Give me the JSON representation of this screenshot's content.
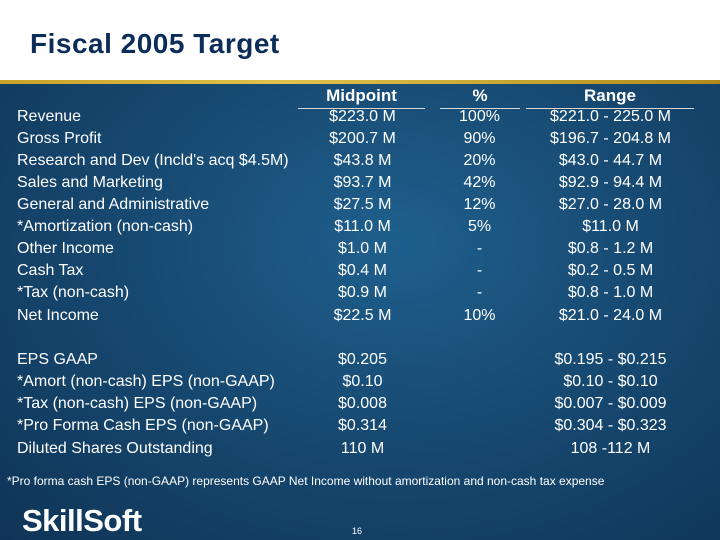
{
  "title": "Fiscal 2005 Target",
  "columns": {
    "midpoint": "Midpoint",
    "percent": "%",
    "range": "Range"
  },
  "rows": [
    {
      "label": "Revenue",
      "midpoint": "$223.0 M",
      "percent": "100%",
      "range": "$221.0 - 225.0 M"
    },
    {
      "label": "Gross Profit",
      "midpoint": "$200.7 M",
      "percent": "90%",
      "range": "$196.7 - 204.8 M"
    },
    {
      "label": "Research and Dev (Incld's acq $4.5M)",
      "midpoint": "$43.8 M",
      "percent": "20%",
      "range": "$43.0 - 44.7 M"
    },
    {
      "label": "Sales and Marketing",
      "midpoint": "$93.7 M",
      "percent": "42%",
      "range": "$92.9 - 94.4 M"
    },
    {
      "label": "General and Administrative",
      "midpoint": "$27.5 M",
      "percent": "12%",
      "range": "$27.0 - 28.0 M"
    },
    {
      "label": "*Amortization (non-cash)",
      "midpoint": "$11.0 M",
      "percent": "5%",
      "range": "$11.0 M"
    },
    {
      "label": "Other Income",
      "midpoint": "$1.0 M",
      "percent": "-",
      "range": "$0.8 - 1.2 M"
    },
    {
      "label": "Cash Tax",
      "midpoint": "$0.4 M",
      "percent": "-",
      "range": "$0.2 - 0.5 M"
    },
    {
      "label": "*Tax (non-cash)",
      "midpoint": "$0.9 M",
      "percent": "-",
      "range": "$0.8 - 1.0 M"
    },
    {
      "label": "Net Income",
      "midpoint": "$22.5 M",
      "percent": "10%",
      "range": "$21.0 - 24.0 M"
    },
    {
      "label": "EPS GAAP",
      "midpoint": "$0.205",
      "percent": "",
      "range": "$0.195 - $0.215"
    },
    {
      "label": "*Amort (non-cash) EPS (non-GAAP)",
      "midpoint": "$0.10",
      "percent": "",
      "range": "$0.10 - $0.10"
    },
    {
      "label": "*Tax (non-cash) EPS (non-GAAP)",
      "midpoint": "$0.008",
      "percent": "",
      "range": "$0.007 - $0.009"
    },
    {
      "label": "*Pro Forma Cash EPS (non-GAAP)",
      "midpoint": "$0.314",
      "percent": "",
      "range": "$0.304 - $0.323"
    },
    {
      "label": "Diluted Shares Outstanding",
      "midpoint": "110 M",
      "percent": "",
      "range": "108 -112 M"
    }
  ],
  "footnote": "*Pro forma cash EPS (non-GAAP) represents GAAP Net Income without amortization and non-cash tax expense",
  "logo": "SkillSoft",
  "page_number": "16",
  "colors": {
    "background": "#174a72",
    "title_text": "#0c2d57",
    "rule": "#c9a227"
  }
}
